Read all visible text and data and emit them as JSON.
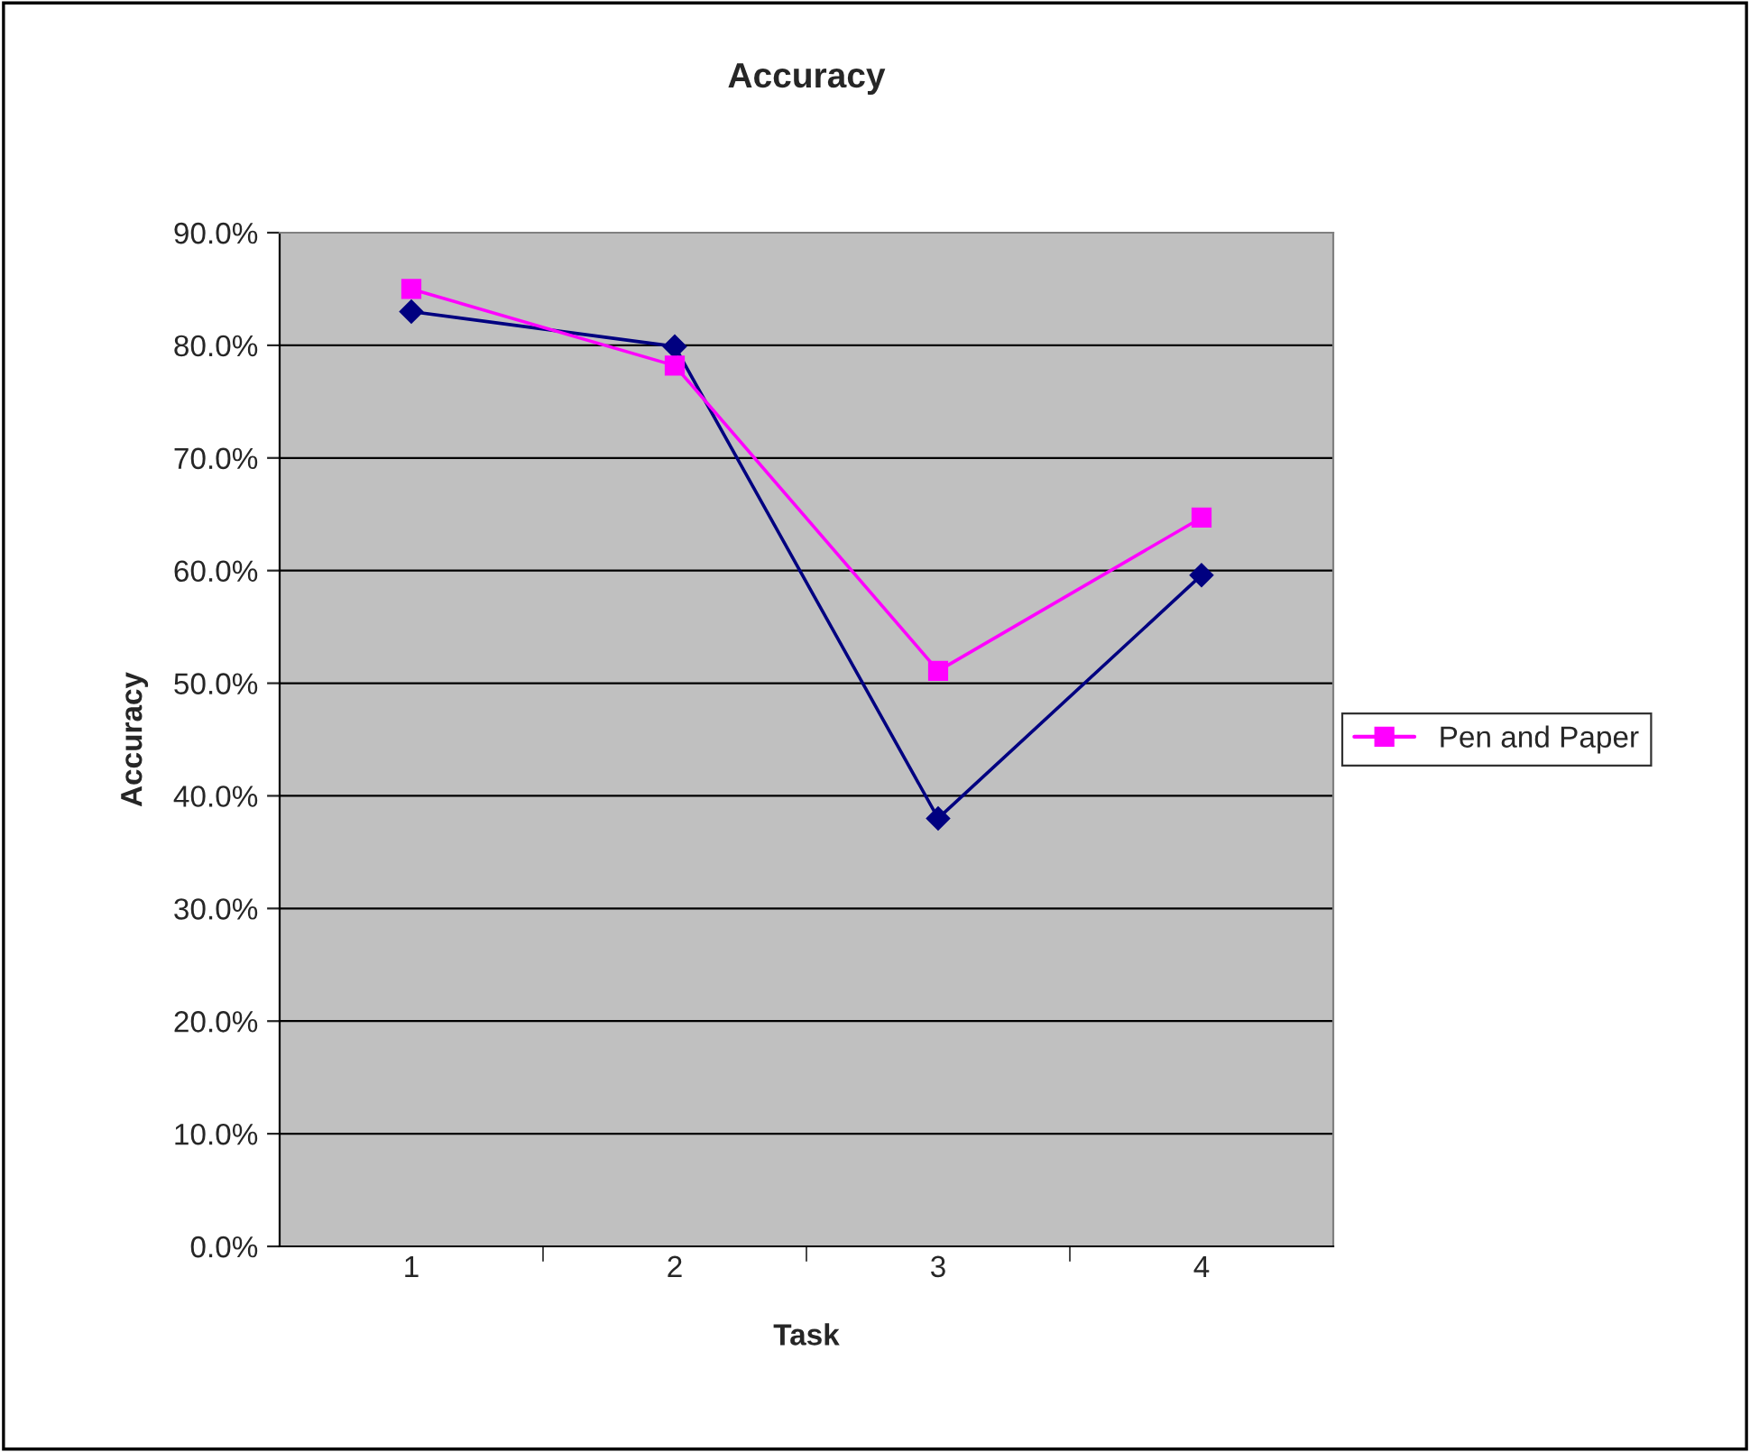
{
  "chart_data": {
    "type": "line",
    "title": "Accuracy",
    "xlabel": "Task",
    "ylabel": "Accuracy",
    "categories": [
      "1",
      "2",
      "3",
      "4"
    ],
    "series": [
      {
        "color": "#000080",
        "marker": "diamond",
        "values": [
          83.0,
          79.9,
          38.0,
          59.6
        ]
      },
      {
        "name": "Pen and Paper",
        "color": "#ff00ff",
        "marker": "square",
        "values": [
          85.0,
          78.2,
          51.1,
          64.7
        ]
      }
    ],
    "ylim": [
      0,
      90
    ],
    "yticks": [
      {
        "value": 0,
        "label": "0.0%"
      },
      {
        "value": 10,
        "label": "10.0%"
      },
      {
        "value": 20,
        "label": "20.0%"
      },
      {
        "value": 30,
        "label": "30.0%"
      },
      {
        "value": 40,
        "label": "40.0%"
      },
      {
        "value": 50,
        "label": "50.0%"
      },
      {
        "value": 60,
        "label": "60.0%"
      },
      {
        "value": 70,
        "label": "70.0%"
      },
      {
        "value": 80,
        "label": "80.0%"
      },
      {
        "value": 90,
        "label": "90.0%"
      }
    ],
    "grid": "y",
    "legend": "right"
  }
}
